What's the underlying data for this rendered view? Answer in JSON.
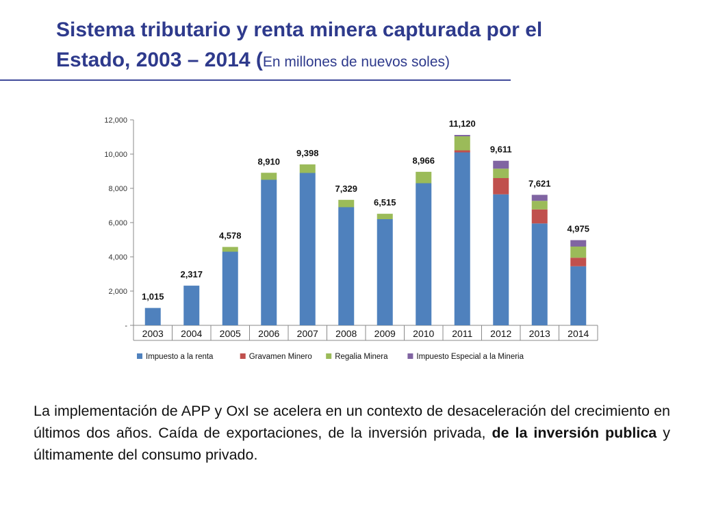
{
  "title": {
    "line1": "Sistema tributario y renta minera capturada por el",
    "line2_main": "Estado, 2003 – 2014 (",
    "line2_sub": "En millones de nuevos soles)"
  },
  "chart_data": {
    "type": "bar",
    "stacked": true,
    "categories": [
      "2003",
      "2004",
      "2005",
      "2006",
      "2007",
      "2008",
      "2009",
      "2010",
      "2011",
      "2012",
      "2013",
      "2014"
    ],
    "series": [
      {
        "name": "Impuesto a la renta",
        "color": "#4f81bd",
        "values": [
          1015,
          2317,
          4300,
          8500,
          8900,
          6900,
          6200,
          8300,
          10100,
          7650,
          5950,
          3450
        ]
      },
      {
        "name": "Gravamen Minero",
        "color": "#c0504d",
        "values": [
          0,
          0,
          0,
          0,
          0,
          0,
          0,
          0,
          120,
          950,
          820,
          500
        ]
      },
      {
        "name": "Regalia Minera",
        "color": "#9bbb59",
        "values": [
          0,
          0,
          278,
          410,
          498,
          429,
          315,
          666,
          820,
          550,
          500,
          650
        ]
      },
      {
        "name": "Impuesto Especial a la Mineria",
        "color": "#8064a2",
        "values": [
          0,
          0,
          0,
          0,
          0,
          0,
          0,
          0,
          80,
          461,
          351,
          375
        ]
      }
    ],
    "totals": [
      "1,015",
      "2,317",
      "4,578",
      "8,910",
      "9,398",
      "7,329",
      "6,515",
      "8,966",
      "11,120",
      "9,611",
      "7,621",
      "4,975"
    ],
    "total_values": [
      1015,
      2317,
      4578,
      8910,
      9398,
      7329,
      6515,
      8966,
      11120,
      9611,
      7621,
      4975
    ],
    "ylim": [
      0,
      12000
    ],
    "yticks": [
      0,
      2000,
      4000,
      6000,
      8000,
      10000,
      12000
    ],
    "ytick_labels": [
      "-",
      "2,000",
      "4,000",
      "6,000",
      "8,000",
      "10,000",
      "12,000"
    ],
    "grid": false,
    "legend_position": "bottom"
  },
  "paragraph": {
    "part1": "La implementación de APP y OxI se acelera en un contexto de desaceleración del crecimiento en últimos dos años. Caída de exportaciones, de la inversión privada, ",
    "bold": "de la inversión publica",
    "part2": " y últimamente del consumo privado."
  }
}
